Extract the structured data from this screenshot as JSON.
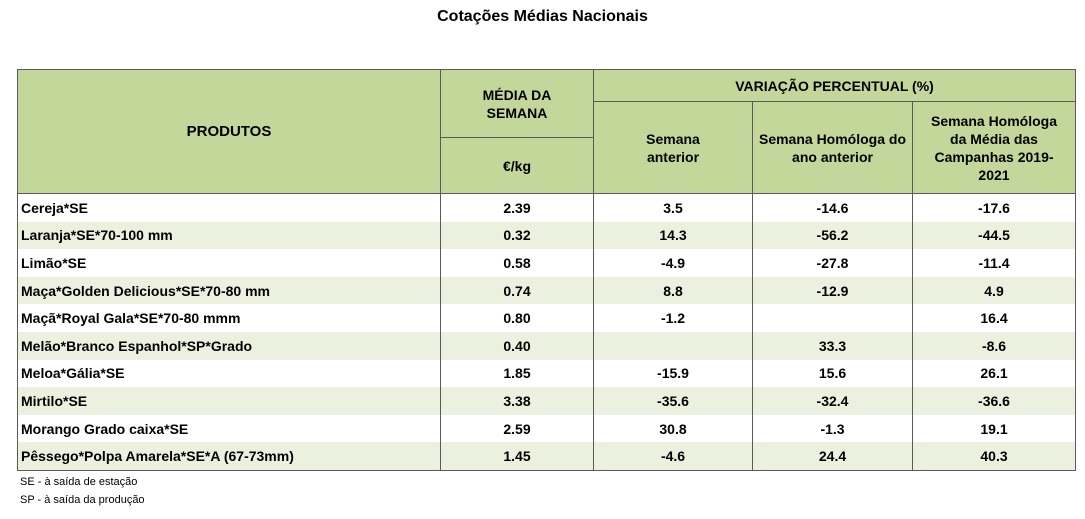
{
  "title": "Cotações Médias Nacionais",
  "header": {
    "products": "PRODUTOS",
    "weekly_avg": "MÉDIA DA SEMANA",
    "unit": "€/kg",
    "variation": "VARIAÇÃO PERCENTUAL (%)",
    "prev_week": "Semana anterior",
    "prev_year": "Semana Homóloga do ano anterior",
    "campaigns": "Semana Homóloga da Média das Campanhas 2019-2021"
  },
  "rows": [
    {
      "product": "Cereja*SE",
      "avg": "2.39",
      "prev_week": "3.5",
      "prev_year": "-14.6",
      "campaigns": "-17.6"
    },
    {
      "product": "Laranja*SE*70-100 mm",
      "avg": "0.32",
      "prev_week": "14.3",
      "prev_year": "-56.2",
      "campaigns": "-44.5"
    },
    {
      "product": "Limão*SE",
      "avg": "0.58",
      "prev_week": "-4.9",
      "prev_year": "-27.8",
      "campaigns": "-11.4"
    },
    {
      "product": "Maça*Golden Delicious*SE*70-80 mm",
      "avg": "0.74",
      "prev_week": "8.8",
      "prev_year": "-12.9",
      "campaigns": "4.9"
    },
    {
      "product": "Maçã*Royal Gala*SE*70-80 mmm",
      "avg": "0.80",
      "prev_week": "-1.2",
      "prev_year": "",
      "campaigns": "16.4"
    },
    {
      "product": "Melão*Branco Espanhol*SP*Grado",
      "avg": "0.40",
      "prev_week": "",
      "prev_year": "33.3",
      "campaigns": "-8.6"
    },
    {
      "product": "Meloa*Gália*SE",
      "avg": "1.85",
      "prev_week": "-15.9",
      "prev_year": "15.6",
      "campaigns": "26.1"
    },
    {
      "product": "Mirtilo*SE",
      "avg": "3.38",
      "prev_week": "-35.6",
      "prev_year": "-32.4",
      "campaigns": "-36.6"
    },
    {
      "product": "Morango Grado caixa*SE",
      "avg": "2.59",
      "prev_week": "30.8",
      "prev_year": "-1.3",
      "campaigns": "19.1"
    },
    {
      "product": "Pêssego*Polpa Amarela*SE*A (67-73mm)",
      "avg": "1.45",
      "prev_week": "-4.6",
      "prev_year": "24.4",
      "campaigns": "40.3"
    }
  ],
  "footnotes": {
    "se": "SE - à saída de estação",
    "sp": "SP - à saída da produção"
  },
  "colors": {
    "header_bg": "#c4d79b",
    "stripe_bg": "#ebf1de",
    "border": "#5a5a5a"
  }
}
